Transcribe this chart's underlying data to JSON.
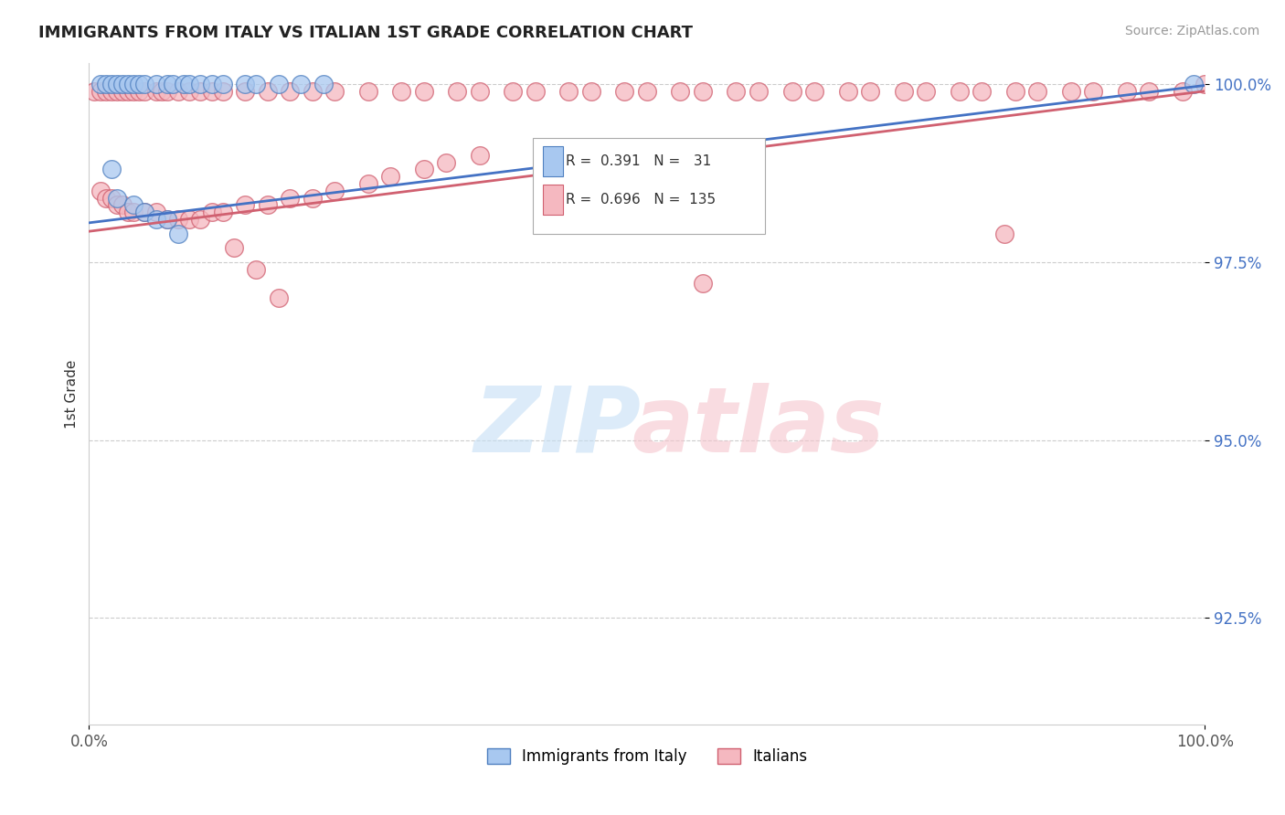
{
  "title": "IMMIGRANTS FROM ITALY VS ITALIAN 1ST GRADE CORRELATION CHART",
  "source": "Source: ZipAtlas.com",
  "ylabel": "1st Grade",
  "xlim": [
    0.0,
    1.0
  ],
  "ylim": [
    0.91,
    1.003
  ],
  "yticks": [
    0.925,
    0.95,
    0.975,
    1.0
  ],
  "ytick_labels": [
    "92.5%",
    "95.0%",
    "97.5%",
    "100.0%"
  ],
  "xticks": [
    0.0,
    1.0
  ],
  "xtick_labels": [
    "0.0%",
    "100.0%"
  ],
  "legend_blue_R": "0.391",
  "legend_blue_N": "31",
  "legend_pink_R": "0.696",
  "legend_pink_N": "135",
  "blue_color": "#a8c8f0",
  "pink_color": "#f5b8c0",
  "blue_edge_color": "#5080c0",
  "pink_edge_color": "#d06070",
  "blue_line_color": "#4472C4",
  "pink_line_color": "#d06070",
  "background_color": "#ffffff",
  "blue_x": [
    0.01,
    0.015,
    0.02,
    0.025,
    0.03,
    0.035,
    0.04,
    0.045,
    0.05,
    0.06,
    0.07,
    0.075,
    0.085,
    0.09,
    0.1,
    0.11,
    0.12,
    0.14,
    0.15,
    0.17,
    0.19,
    0.21,
    0.02,
    0.025,
    0.04,
    0.05,
    0.06,
    0.07,
    0.08,
    0.99
  ],
  "blue_y": [
    1.0,
    1.0,
    1.0,
    1.0,
    1.0,
    1.0,
    1.0,
    1.0,
    1.0,
    1.0,
    1.0,
    1.0,
    1.0,
    1.0,
    1.0,
    1.0,
    1.0,
    1.0,
    1.0,
    1.0,
    1.0,
    1.0,
    0.988,
    0.984,
    0.983,
    0.982,
    0.981,
    0.981,
    0.979,
    1.0
  ],
  "pink_x": [
    0.005,
    0.01,
    0.015,
    0.02,
    0.025,
    0.03,
    0.035,
    0.04,
    0.045,
    0.05,
    0.06,
    0.065,
    0.07,
    0.08,
    0.09,
    0.1,
    0.11,
    0.12,
    0.14,
    0.16,
    0.18,
    0.2,
    0.22,
    0.25,
    0.28,
    0.3,
    0.33,
    0.35,
    0.38,
    0.4,
    0.43,
    0.45,
    0.48,
    0.5,
    0.53,
    0.55,
    0.58,
    0.6,
    0.63,
    0.65,
    0.68,
    0.7,
    0.73,
    0.75,
    0.78,
    0.8,
    0.83,
    0.85,
    0.88,
    0.9,
    0.93,
    0.95,
    0.98,
    1.0,
    0.01,
    0.015,
    0.02,
    0.025,
    0.03,
    0.035,
    0.04,
    0.05,
    0.06,
    0.07,
    0.08,
    0.09,
    0.1,
    0.11,
    0.12,
    0.14,
    0.16,
    0.18,
    0.2,
    0.22,
    0.25,
    0.27,
    0.3,
    0.32,
    0.35,
    0.13,
    0.15,
    0.17,
    0.55,
    0.82
  ],
  "pink_y": [
    0.999,
    0.999,
    0.999,
    0.999,
    0.999,
    0.999,
    0.999,
    0.999,
    0.999,
    0.999,
    0.999,
    0.999,
    0.999,
    0.999,
    0.999,
    0.999,
    0.999,
    0.999,
    0.999,
    0.999,
    0.999,
    0.999,
    0.999,
    0.999,
    0.999,
    0.999,
    0.999,
    0.999,
    0.999,
    0.999,
    0.999,
    0.999,
    0.999,
    0.999,
    0.999,
    0.999,
    0.999,
    0.999,
    0.999,
    0.999,
    0.999,
    0.999,
    0.999,
    0.999,
    0.999,
    0.999,
    0.999,
    0.999,
    0.999,
    0.999,
    0.999,
    0.999,
    0.999,
    1.0,
    0.985,
    0.984,
    0.984,
    0.983,
    0.983,
    0.982,
    0.982,
    0.982,
    0.982,
    0.981,
    0.981,
    0.981,
    0.981,
    0.982,
    0.982,
    0.983,
    0.983,
    0.984,
    0.984,
    0.985,
    0.986,
    0.987,
    0.988,
    0.989,
    0.99,
    0.977,
    0.974,
    0.97,
    0.972,
    0.979
  ]
}
